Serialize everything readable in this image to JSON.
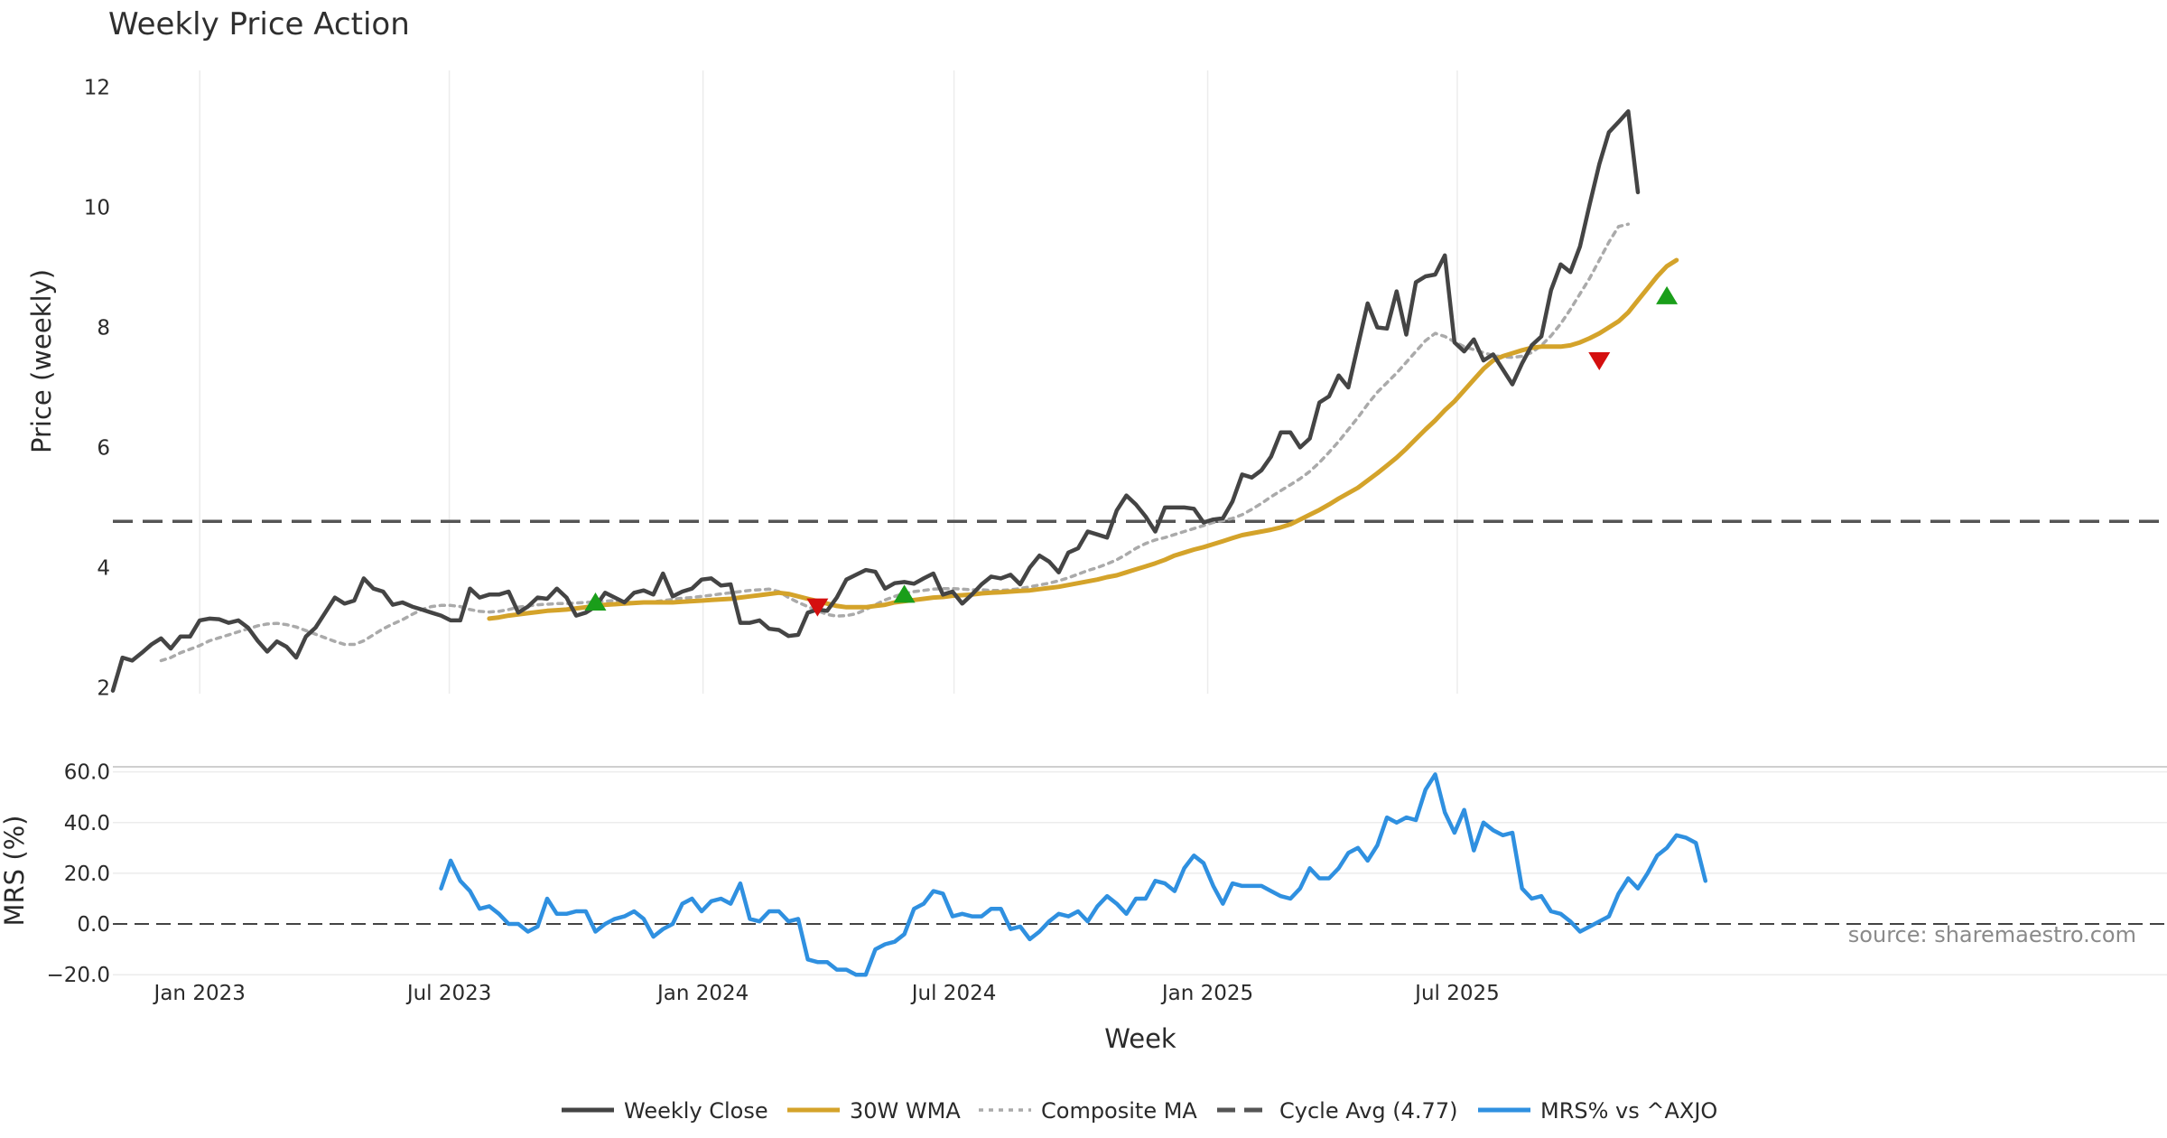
{
  "chart_data": {
    "type": "line",
    "title": "Weekly Price Action",
    "start_date": "2022-10-30",
    "week_step_days": 7,
    "price_panel": {
      "ylabel": "Price (weekly)",
      "ylim": [
        1.9,
        12.4
      ],
      "yticks": [
        "2",
        "4",
        "6",
        "8",
        "10",
        "12"
      ],
      "cycle_avg": 4.77,
      "series": {
        "weekly_close": [
          1.95,
          2.5,
          2.45,
          2.58,
          2.72,
          2.82,
          2.65,
          2.85,
          2.85,
          3.12,
          3.15,
          3.14,
          3.08,
          3.12,
          3.0,
          2.78,
          2.6,
          2.77,
          2.68,
          2.5,
          2.85,
          3.0,
          3.25,
          3.5,
          3.4,
          3.45,
          3.82,
          3.65,
          3.6,
          3.38,
          3.42,
          3.35,
          3.3,
          3.25,
          3.2,
          3.12,
          3.12,
          3.65,
          3.5,
          3.55,
          3.55,
          3.6,
          3.25,
          3.35,
          3.5,
          3.48,
          3.65,
          3.5,
          3.2,
          3.25,
          3.35,
          3.58,
          3.5,
          3.42,
          3.58,
          3.62,
          3.55,
          3.9,
          3.52,
          3.6,
          3.65,
          3.8,
          3.82,
          3.7,
          3.72,
          3.08,
          3.08,
          3.12,
          2.98,
          2.96,
          2.86,
          2.88,
          3.25,
          3.3,
          3.28,
          3.5,
          3.8,
          3.88,
          3.96,
          3.93,
          3.65,
          3.74,
          3.76,
          3.73,
          3.82,
          3.9,
          3.55,
          3.6,
          3.4,
          3.55,
          3.72,
          3.85,
          3.82,
          3.88,
          3.72,
          4.0,
          4.2,
          4.1,
          3.92,
          4.25,
          4.32,
          4.6,
          4.55,
          4.5,
          4.95,
          5.2,
          5.05,
          4.85,
          4.6,
          5.0,
          5.0,
          5.0,
          4.98,
          4.75,
          4.8,
          4.82,
          5.1,
          5.55,
          5.5,
          5.62,
          5.85,
          6.25,
          6.25,
          6.0,
          6.15,
          6.75,
          6.85,
          7.2,
          7.0,
          7.7,
          8.4,
          8.0,
          7.98,
          8.6,
          7.88,
          8.75,
          8.85,
          8.88,
          9.2,
          7.75,
          7.6,
          7.8,
          7.45,
          7.55,
          7.3,
          7.05,
          7.4,
          7.7,
          7.85,
          8.62,
          9.05,
          8.92,
          9.35,
          10.05,
          10.72,
          11.25,
          11.42,
          11.6,
          10.25
        ],
        "wma_30": [
          3.15,
          3.17,
          3.2,
          3.22,
          3.24,
          3.26,
          3.28,
          3.29,
          3.3,
          3.32,
          3.34,
          3.36,
          3.38,
          3.39,
          3.4,
          3.41,
          3.42,
          3.42,
          3.42,
          3.42,
          3.43,
          3.44,
          3.45,
          3.46,
          3.47,
          3.48,
          3.5,
          3.52,
          3.54,
          3.56,
          3.58,
          3.56,
          3.52,
          3.48,
          3.44,
          3.4,
          3.36,
          3.34,
          3.34,
          3.34,
          3.36,
          3.38,
          3.42,
          3.44,
          3.46,
          3.48,
          3.5,
          3.51,
          3.53,
          3.54,
          3.55,
          3.57,
          3.58,
          3.59,
          3.6,
          3.61,
          3.62,
          3.64,
          3.66,
          3.68,
          3.71,
          3.74,
          3.77,
          3.8,
          3.84,
          3.87,
          3.92,
          3.97,
          4.02,
          4.07,
          4.13,
          4.2,
          4.25,
          4.3,
          4.34,
          4.39,
          4.44,
          4.49,
          4.54,
          4.57,
          4.6,
          4.63,
          4.67,
          4.72,
          4.8,
          4.88,
          4.96,
          5.05,
          5.15,
          5.24,
          5.33,
          5.45,
          5.57,
          5.7,
          5.83,
          5.98,
          6.14,
          6.3,
          6.45,
          6.62,
          6.77,
          6.95,
          7.13,
          7.31,
          7.45,
          7.52,
          7.57,
          7.62,
          7.66,
          7.68,
          7.68,
          7.68,
          7.7,
          7.75,
          7.82,
          7.9,
          8.0,
          8.1,
          8.25,
          8.45,
          8.65,
          8.85,
          9.02,
          9.12
        ],
        "composite_ma": [
          2.45,
          2.5,
          2.58,
          2.64,
          2.7,
          2.78,
          2.83,
          2.88,
          2.93,
          2.98,
          3.03,
          3.06,
          3.07,
          3.05,
          3.01,
          2.95,
          2.89,
          2.83,
          2.77,
          2.72,
          2.72,
          2.78,
          2.88,
          2.98,
          3.06,
          3.13,
          3.22,
          3.3,
          3.35,
          3.37,
          3.37,
          3.35,
          3.3,
          3.27,
          3.26,
          3.27,
          3.3,
          3.34,
          3.36,
          3.38,
          3.39,
          3.4,
          3.4,
          3.41,
          3.42,
          3.43,
          3.44,
          3.45,
          3.43,
          3.41,
          3.41,
          3.43,
          3.45,
          3.47,
          3.49,
          3.5,
          3.52,
          3.54,
          3.56,
          3.58,
          3.6,
          3.62,
          3.63,
          3.64,
          3.6,
          3.5,
          3.42,
          3.35,
          3.28,
          3.22,
          3.19,
          3.2,
          3.23,
          3.3,
          3.38,
          3.46,
          3.52,
          3.57,
          3.6,
          3.62,
          3.64,
          3.65,
          3.65,
          3.64,
          3.63,
          3.63,
          3.62,
          3.62,
          3.63,
          3.65,
          3.68,
          3.71,
          3.74,
          3.78,
          3.83,
          3.89,
          3.95,
          4.0,
          4.06,
          4.13,
          4.22,
          4.32,
          4.4,
          4.46,
          4.5,
          4.55,
          4.6,
          4.65,
          4.7,
          4.75,
          4.78,
          4.82,
          4.88,
          4.97,
          5.07,
          5.18,
          5.28,
          5.38,
          5.48,
          5.6,
          5.75,
          5.92,
          6.1,
          6.3,
          6.5,
          6.72,
          6.92,
          7.08,
          7.24,
          7.42,
          7.6,
          7.78,
          7.9,
          7.85,
          7.76,
          7.68,
          7.63,
          7.58,
          7.53,
          7.51,
          7.5,
          7.52,
          7.58,
          7.7,
          7.86,
          8.06,
          8.3,
          8.56,
          8.82,
          9.12,
          9.42,
          9.68,
          9.72
        ],
        "composite_start_week": 5,
        "wma_start_week": 39
      },
      "buy_signals": [
        {
          "week": 50,
          "price": 3.42
        },
        {
          "week": 82,
          "price": 3.55
        },
        {
          "week": 161,
          "price": 8.52
        }
      ],
      "sell_signals": [
        {
          "week": 73,
          "price": 3.35
        },
        {
          "week": 154,
          "price": 7.45
        }
      ]
    },
    "mrs_panel": {
      "ylabel": "MRS (%)",
      "ylim": [
        -21,
        62
      ],
      "yticks": [
        "60.0",
        "40.0",
        "20.0",
        "0.0",
        "−20.0"
      ],
      "start_week": 34,
      "values": [
        14,
        25,
        17,
        13,
        6,
        7,
        4,
        0,
        0,
        -3,
        -1,
        10,
        4,
        4,
        5,
        5,
        -3,
        0,
        2,
        3,
        5,
        2,
        -5,
        -2,
        0,
        8,
        10,
        5,
        9,
        10,
        8,
        16,
        2,
        1,
        5,
        5,
        1,
        2,
        -14,
        -15,
        -15,
        -18,
        -18,
        -20,
        -20,
        -10,
        -8,
        -7,
        -4,
        6,
        8,
        13,
        12,
        3,
        4,
        3,
        3,
        6,
        6,
        -2,
        -1,
        -6,
        -3,
        1,
        4,
        3,
        5,
        1,
        7,
        11,
        8,
        4,
        10,
        10,
        17,
        16,
        13,
        22,
        27,
        24,
        15,
        8,
        16,
        15,
        15,
        15,
        13,
        11,
        10,
        14,
        22,
        18,
        18,
        22,
        28,
        30,
        25,
        31,
        42,
        40,
        42,
        41,
        53,
        59,
        44,
        36,
        45,
        29,
        40,
        37,
        35,
        36,
        14,
        10,
        11,
        5,
        4,
        1,
        -3,
        -1,
        1,
        3,
        12,
        18,
        14,
        20,
        27,
        30,
        35,
        34,
        32,
        17
      ]
    },
    "x_axis": {
      "xlabel": "Week",
      "ticks": [
        {
          "label": "Jan 2023",
          "date": "2023-01-01"
        },
        {
          "label": "Jul 2023",
          "date": "2023-07-01"
        },
        {
          "label": "Jan 2024",
          "date": "2024-01-01"
        },
        {
          "label": "Jul 2024",
          "date": "2024-07-01"
        },
        {
          "label": "Jan 2025",
          "date": "2025-01-01"
        },
        {
          "label": "Jul 2025",
          "date": "2025-07-01"
        }
      ]
    },
    "legend": [
      {
        "label": "Weekly Close",
        "style": "solid",
        "color": "#444444"
      },
      {
        "label": "30W WMA",
        "style": "solid",
        "color": "#d4a32a"
      },
      {
        "label": "Composite MA",
        "style": "dotted",
        "color": "#aaaaaa"
      },
      {
        "label": "Cycle Avg (4.77)",
        "style": "dashed",
        "color": "#555555"
      },
      {
        "label": "MRS% vs ^AXJO",
        "style": "solid",
        "color": "#2f90e0"
      }
    ],
    "source": "source: sharemaestro.com",
    "colors": {
      "close": "#444444",
      "wma": "#d4a32a",
      "composite": "#aaaaaa",
      "cycle": "#555555",
      "mrs": "#2f90e0",
      "buy": "#1a9e1a",
      "sell": "#d40f0f",
      "grid": "#ececec"
    }
  }
}
